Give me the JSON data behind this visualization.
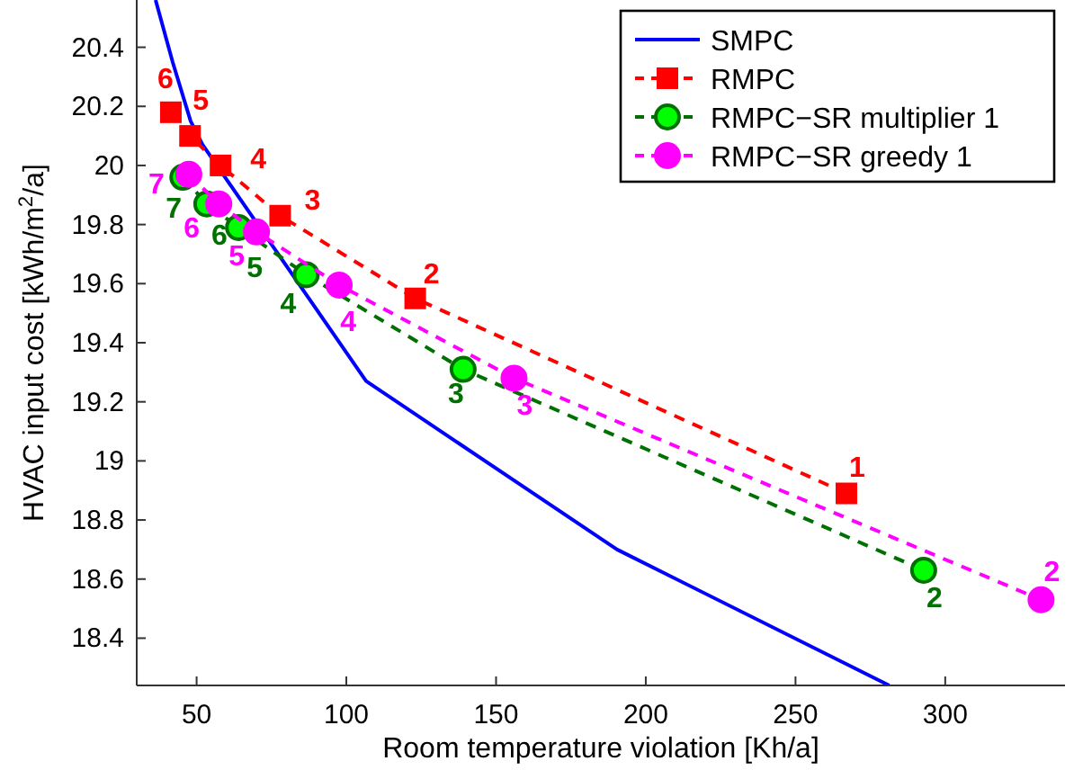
{
  "chart_data": {
    "type": "line",
    "xlabel": "Room temperature violation [Kh/a]",
    "ylabel": "HVAC input cost [kWh/m$^{2}$/a]",
    "xlim": [
      30,
      340
    ],
    "ylim": [
      18.24,
      20.56
    ],
    "xticks": [
      50,
      100,
      150,
      200,
      250,
      300
    ],
    "yticks": [
      18.4,
      18.6,
      18.8,
      19,
      19.2,
      19.4,
      19.6,
      19.8,
      20,
      20.2,
      20.4
    ],
    "grid": false,
    "legend": "top right",
    "series": [
      {
        "name": "SMPC",
        "color": "#0000ff",
        "marker": "none",
        "line_style": "solid",
        "x": [
          36.3,
          42,
          48,
          52,
          106.6,
          190.4,
          281.3
        ],
        "values": [
          20.56,
          20.35,
          20.15,
          20.07,
          19.27,
          18.7,
          18.24
        ]
      },
      {
        "name": "RMPC",
        "color": "#ff0000",
        "marker": "square",
        "line_style": "dashed",
        "x": [
          41.4,
          47.8,
          58,
          77.9,
          123,
          267
        ],
        "values": [
          20.18,
          20.1,
          20.0,
          19.83,
          19.55,
          18.89
        ]
      },
      {
        "name": "RMPC−SR multiplier 1",
        "color": "#00ff00",
        "marker": "circle",
        "line_style": "dashed",
        "x": [
          45.4,
          53.4,
          64,
          86.6,
          139,
          292.8
        ],
        "values": [
          19.96,
          19.87,
          19.79,
          19.63,
          19.31,
          18.63
        ]
      },
      {
        "name": "RMPC−SR greedy 1",
        "color": "#ff00ff",
        "marker": "circle",
        "line_style": "dashed",
        "x": [
          47.4,
          57.4,
          70,
          97.6,
          156,
          332
        ],
        "values": [
          19.97,
          19.87,
          19.775,
          19.595,
          19.28,
          18.53
        ]
      }
    ],
    "annotations": [
      {
        "text": "6",
        "x": 41.4,
        "y": 20.18
      },
      {
        "text": "5",
        "x": 47.8,
        "y": 20.1
      },
      {
        "text": "4",
        "x": 58,
        "y": 20.0
      },
      {
        "text": "3",
        "x": 77.9,
        "y": 19.83
      },
      {
        "text": "2",
        "x": 123,
        "y": 19.55
      },
      {
        "text": "1",
        "x": 267,
        "y": 18.89
      },
      {
        "text": "7",
        "x": 45.4,
        "y": 19.96
      },
      {
        "text": "6",
        "x": 53.4,
        "y": 19.87
      },
      {
        "text": "5",
        "x": 64,
        "y": 19.79
      },
      {
        "text": "4",
        "x": 86.6,
        "y": 19.63
      },
      {
        "text": "3",
        "x": 139,
        "y": 19.31
      },
      {
        "text": "2",
        "x": 292.8,
        "y": 18.63
      },
      {
        "text": "7",
        "x": 47.4,
        "y": 19.97
      },
      {
        "text": "6",
        "x": 57.4,
        "y": 19.87
      },
      {
        "text": "5",
        "x": 70,
        "y": 19.775
      },
      {
        "text": "4",
        "x": 97.6,
        "y": 19.595
      },
      {
        "text": "3",
        "x": 156,
        "y": 19.28
      },
      {
        "text": "2",
        "x": 332,
        "y": 18.53
      }
    ]
  }
}
